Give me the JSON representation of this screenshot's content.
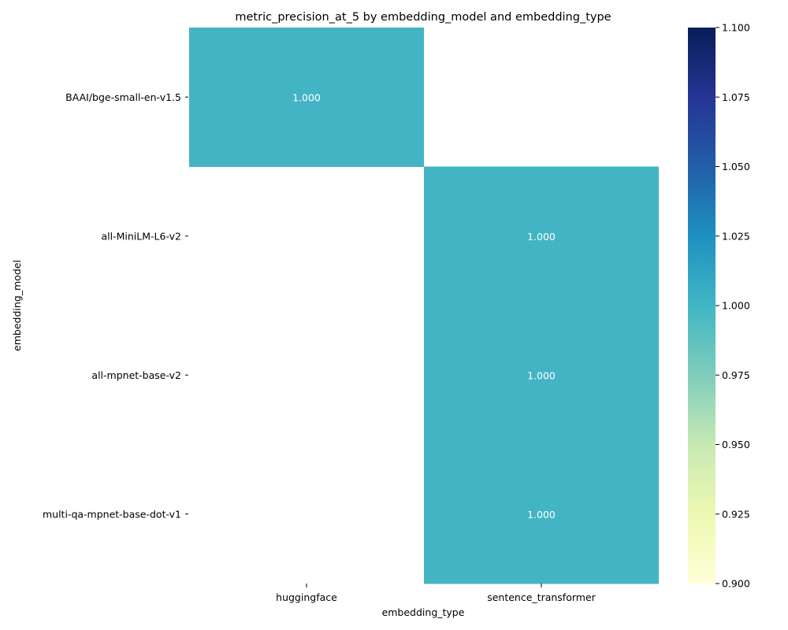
{
  "chart_data": {
    "type": "heatmap",
    "title": "metric_precision_at_5 by embedding_model and embedding_type",
    "xlabel": "embedding_type",
    "ylabel": "embedding_model",
    "x_categories": [
      "huggingface",
      "sentence_transformer"
    ],
    "y_categories": [
      "BAAI/bge-small-en-v1.5",
      "all-MiniLM-L6-v2",
      "all-mpnet-base-v2",
      "multi-qa-mpnet-base-dot-v1"
    ],
    "values": [
      [
        1.0,
        null
      ],
      [
        null,
        1.0
      ],
      [
        null,
        1.0
      ],
      [
        null,
        1.0
      ]
    ],
    "value_labels": [
      [
        "1.000",
        ""
      ],
      [
        "",
        "1.000"
      ],
      [
        "",
        "1.000"
      ],
      [
        "",
        "1.000"
      ]
    ],
    "colorbar": {
      "vmin": 0.9,
      "vmax": 1.1,
      "ticks": [
        "0.900",
        "0.925",
        "0.950",
        "0.975",
        "1.000",
        "1.025",
        "1.050",
        "1.075",
        "1.100"
      ],
      "colormap": "YlGnBu",
      "stops": [
        "#ffffd9",
        "#edf8b1",
        "#c7e9b4",
        "#7fcdbb",
        "#41b6c4",
        "#1d91c0",
        "#225ea8",
        "#253494",
        "#081d58"
      ]
    },
    "cell_color": "#43b4c4",
    "cell_text_color": "#ffffff"
  }
}
